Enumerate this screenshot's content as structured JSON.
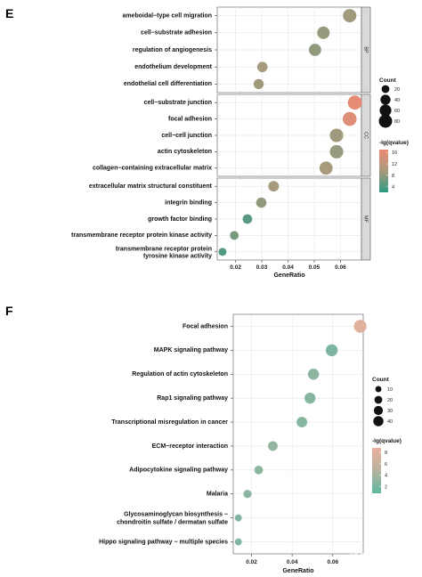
{
  "chart_data": [
    {
      "panel": "E",
      "type": "scatter",
      "xlabel": "GeneRatio",
      "xlim": [
        0.013,
        0.068
      ],
      "xticks": [
        0.02,
        0.03,
        0.04,
        0.05,
        0.06
      ],
      "xtick_labels": [
        "0.02",
        "0.03",
        "0.04",
        "0.05",
        "0.06"
      ],
      "groups": [
        {
          "strip": "BP",
          "points": [
            {
              "term": "ameboidal−type cell migration",
              "x": 0.0635,
              "count": 55,
              "lgq": 9.0
            },
            {
              "term": "cell−substrate adhesion",
              "x": 0.0535,
              "count": 46,
              "lgq": 8.5
            },
            {
              "term": "regulation of angiogenesis",
              "x": 0.0503,
              "count": 44,
              "lgq": 8.0
            },
            {
              "term": "endothelium development",
              "x": 0.0302,
              "count": 28,
              "lgq": 9.5
            },
            {
              "term": "endothelial cell differentiation",
              "x": 0.0288,
              "count": 26,
              "lgq": 9.0
            }
          ]
        },
        {
          "strip": "CC",
          "points": [
            {
              "term": "cell−substrate junction",
              "x": 0.0655,
              "count": 62,
              "lgq": 16.5
            },
            {
              "term": "focal adhesion",
              "x": 0.0635,
              "count": 60,
              "lgq": 15.5
            },
            {
              "term": "cell−cell junction",
              "x": 0.0585,
              "count": 55,
              "lgq": 9.0
            },
            {
              "term": "actin cytoskeleton",
              "x": 0.0585,
              "count": 55,
              "lgq": 8.5
            },
            {
              "term": "collagen−containing extracellular matrix",
              "x": 0.0545,
              "count": 52,
              "lgq": 9.5
            }
          ]
        },
        {
          "strip": "MF",
          "points": [
            {
              "term": "extracellular matrix structural constituent",
              "x": 0.0345,
              "count": 30,
              "lgq": 9.5
            },
            {
              "term": "integrin binding",
              "x": 0.0298,
              "count": 27,
              "lgq": 8.0
            },
            {
              "term": "growth factor binding",
              "x": 0.0245,
              "count": 22,
              "lgq": 4.5
            },
            {
              "term": "transmembrane receptor protein kinase activity",
              "x": 0.0195,
              "count": 17,
              "lgq": 6.5
            },
            {
              "term": [
                "transmembrane receptor protein",
                "tyrosine kinase activity"
              ],
              "x": 0.015,
              "count": 13,
              "lgq": 4.0
            }
          ]
        }
      ],
      "legend": {
        "count_title": "Count",
        "count_values": [
          20,
          40,
          60,
          80
        ],
        "color_title": "-lg(qvalue)",
        "color_ticks": [
          4,
          8,
          12,
          16
        ],
        "color_range": [
          2,
          17
        ],
        "color_low": "#2e9a83",
        "color_mid": "#a89a7c",
        "color_high": "#ec8a74"
      }
    },
    {
      "panel": "F",
      "type": "scatter",
      "xlabel": "GeneRatio",
      "xlim": [
        0.011,
        0.075
      ],
      "xticks": [
        0.02,
        0.04,
        0.06
      ],
      "xtick_labels": [
        "0.02",
        "0.04",
        "0.06"
      ],
      "points": [
        {
          "term": "Focal adhesion",
          "x": 0.0735,
          "count": 34,
          "lgq": 8.0
        },
        {
          "term": "MAPK signaling pathway",
          "x": 0.0595,
          "count": 29,
          "lgq": 2.3
        },
        {
          "term": "Regulation of actin cytoskeleton",
          "x": 0.0505,
          "count": 24,
          "lgq": 3.0
        },
        {
          "term": "Rap1 signaling pathway",
          "x": 0.0488,
          "count": 23,
          "lgq": 2.6
        },
        {
          "term": "Transcriptional misregulation in cancer",
          "x": 0.0448,
          "count": 21,
          "lgq": 2.6
        },
        {
          "term": "ECM−receptor interaction",
          "x": 0.0305,
          "count": 16,
          "lgq": 3.2
        },
        {
          "term": "Adipocytokine signaling pathway",
          "x": 0.0235,
          "count": 12,
          "lgq": 2.8
        },
        {
          "term": "Malaria",
          "x": 0.018,
          "count": 10,
          "lgq": 2.8
        },
        {
          "term": [
            "Glycosaminoglycan biosynthesis −",
            "chondroitin sulfate / dermatan sulfate"
          ],
          "x": 0.0135,
          "count": 6,
          "lgq": 2.4
        },
        {
          "term": "Hippo signaling pathway − multiple species",
          "x": 0.0135,
          "count": 6,
          "lgq": 2.4
        }
      ],
      "legend": {
        "count_title": "Count",
        "count_values": [
          10,
          20,
          30,
          40
        ],
        "color_title": "-lg(qvalue)",
        "color_ticks": [
          2,
          4,
          6,
          8
        ],
        "color_range": [
          0.8,
          8.8
        ],
        "color_low": "#5cb8a3",
        "color_mid": "#b7b39d",
        "color_high": "#eab09c"
      }
    }
  ],
  "watermark": "知乎 @生信小白鱼"
}
